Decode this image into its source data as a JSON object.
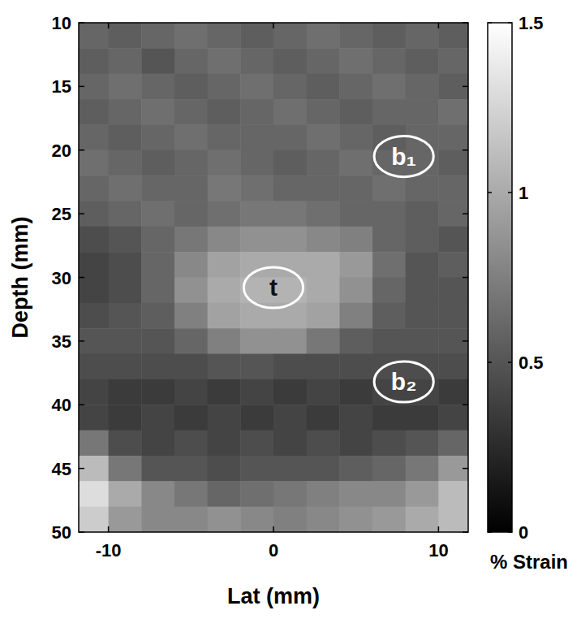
{
  "chart_data": {
    "type": "heatmap",
    "xlabel": "Lat (mm)",
    "ylabel": "Depth (mm)",
    "xlim": [
      -11.8,
      11.8
    ],
    "ylim": [
      10,
      50
    ],
    "xticks": [
      -10,
      0,
      10
    ],
    "yticks": [
      10,
      15,
      20,
      25,
      30,
      35,
      40,
      45,
      50
    ],
    "x": [
      -11,
      -9,
      -7,
      -5,
      -3,
      -1,
      1,
      3,
      5,
      7,
      9,
      11
    ],
    "y": [
      11,
      13,
      15,
      17,
      19,
      21,
      23,
      25,
      27,
      29,
      31,
      33,
      35,
      37,
      39,
      41,
      43,
      45,
      47,
      49
    ],
    "z": [
      [
        0.6,
        0.55,
        0.6,
        0.65,
        0.6,
        0.55,
        0.6,
        0.65,
        0.6,
        0.55,
        0.6,
        0.55
      ],
      [
        0.55,
        0.6,
        0.5,
        0.6,
        0.65,
        0.6,
        0.55,
        0.6,
        0.65,
        0.6,
        0.55,
        0.6
      ],
      [
        0.6,
        0.65,
        0.6,
        0.55,
        0.6,
        0.65,
        0.6,
        0.55,
        0.6,
        0.65,
        0.6,
        0.55
      ],
      [
        0.55,
        0.6,
        0.65,
        0.6,
        0.55,
        0.6,
        0.65,
        0.6,
        0.55,
        0.6,
        0.6,
        0.65
      ],
      [
        0.6,
        0.55,
        0.6,
        0.65,
        0.6,
        0.6,
        0.6,
        0.65,
        0.6,
        0.55,
        0.6,
        0.6
      ],
      [
        0.65,
        0.6,
        0.55,
        0.6,
        0.65,
        0.6,
        0.55,
        0.6,
        0.65,
        0.6,
        0.6,
        0.55
      ],
      [
        0.6,
        0.65,
        0.6,
        0.6,
        0.7,
        0.65,
        0.6,
        0.6,
        0.6,
        0.65,
        0.6,
        0.6
      ],
      [
        0.55,
        0.6,
        0.65,
        0.6,
        0.65,
        0.7,
        0.7,
        0.65,
        0.6,
        0.6,
        0.55,
        0.6
      ],
      [
        0.45,
        0.5,
        0.6,
        0.7,
        0.8,
        0.85,
        0.85,
        0.8,
        0.75,
        0.6,
        0.55,
        0.5
      ],
      [
        0.4,
        0.45,
        0.6,
        0.8,
        0.95,
        1.0,
        1.0,
        1.0,
        0.9,
        0.65,
        0.5,
        0.55
      ],
      [
        0.4,
        0.45,
        0.6,
        0.85,
        1.0,
        1.05,
        1.05,
        1.0,
        0.85,
        0.6,
        0.5,
        0.5
      ],
      [
        0.45,
        0.5,
        0.55,
        0.75,
        0.95,
        1.0,
        1.0,
        0.95,
        0.75,
        0.55,
        0.5,
        0.5
      ],
      [
        0.5,
        0.5,
        0.5,
        0.6,
        0.75,
        0.85,
        0.85,
        0.7,
        0.55,
        0.5,
        0.5,
        0.5
      ],
      [
        0.45,
        0.45,
        0.45,
        0.45,
        0.5,
        0.5,
        0.45,
        0.45,
        0.45,
        0.45,
        0.45,
        0.45
      ],
      [
        0.4,
        0.35,
        0.35,
        0.4,
        0.35,
        0.4,
        0.35,
        0.4,
        0.35,
        0.4,
        0.4,
        0.35
      ],
      [
        0.4,
        0.35,
        0.4,
        0.35,
        0.4,
        0.35,
        0.4,
        0.35,
        0.4,
        0.35,
        0.35,
        0.4
      ],
      [
        0.7,
        0.45,
        0.4,
        0.45,
        0.4,
        0.45,
        0.4,
        0.45,
        0.4,
        0.45,
        0.5,
        0.6
      ],
      [
        1.1,
        0.7,
        0.5,
        0.5,
        0.45,
        0.5,
        0.5,
        0.5,
        0.55,
        0.6,
        0.7,
        0.9
      ],
      [
        1.3,
        1.0,
        0.8,
        0.7,
        0.6,
        0.65,
        0.7,
        0.75,
        0.8,
        0.8,
        0.9,
        1.1
      ],
      [
        1.2,
        0.9,
        0.8,
        0.8,
        0.85,
        0.8,
        0.75,
        0.8,
        0.85,
        0.9,
        1.0,
        1.1
      ]
    ],
    "colorbar_label": "% Strain",
    "colorbar_lim": [
      0,
      1.5
    ],
    "colorbar_ticks": [
      0,
      0.5,
      1,
      1.5
    ],
    "regions": [
      {
        "label": "t",
        "x": 0,
        "y": 30.8,
        "rx": 1.8,
        "ry": 1.6,
        "color": "#111111"
      },
      {
        "label": "b₁",
        "x": 7.9,
        "y": 20.5,
        "rx": 1.8,
        "ry": 1.6,
        "color": "#ffffff"
      },
      {
        "label": "b₂",
        "x": 7.9,
        "y": 38.2,
        "rx": 1.8,
        "ry": 1.6,
        "color": "#ffffff"
      }
    ]
  }
}
